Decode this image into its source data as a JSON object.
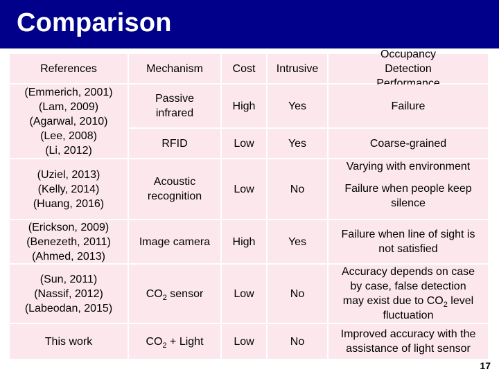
{
  "slide": {
    "title": "Comparison",
    "page_number": "17",
    "header_color": "#00008b",
    "cell_color": "#fce8ec"
  },
  "table": {
    "headers": {
      "references": "References",
      "mechanism": "Mechanism",
      "cost": "Cost",
      "intrusive": "Intrusive",
      "performance": "Occupancy Detection Performance"
    },
    "rows": [
      {
        "references": [
          "(Emmerich, 2001)",
          "(Lam, 2009)",
          "(Agarwal, 2010)",
          "(Lee, 2008)",
          "(Li, 2012)"
        ],
        "mechanism": [
          "Passive",
          "infrared"
        ],
        "cost": "High",
        "intrusive": "Yes",
        "performance": [
          "Failure"
        ]
      },
      {
        "mechanism": [
          "RFID"
        ],
        "cost": "Low",
        "intrusive": "Yes",
        "performance": [
          "Coarse-grained"
        ]
      },
      {
        "references": [
          "(Uziel, 2013)",
          "(Kelly, 2014)",
          "(Huang, 2016)"
        ],
        "mechanism": [
          "Acoustic",
          "recognition"
        ],
        "cost": "Low",
        "intrusive": "No",
        "performance_top": "Varying with environment",
        "performance": [
          "Failure when people keep",
          "silence"
        ]
      },
      {
        "references": [
          "(Erickson, 2009)",
          "(Benezeth, 2011)",
          "(Ahmed, 2013)"
        ],
        "mechanism": [
          "Image camera"
        ],
        "cost": "High",
        "intrusive": "Yes",
        "performance": [
          "Failure when line of sight is",
          "not satisfied"
        ]
      },
      {
        "references": [
          "(Sun, 2011)",
          "(Nassif, 2012)",
          "(Labeodan, 2015)"
        ],
        "mechanism_main": "CO",
        "mechanism_sub": "2",
        "mechanism_rest": " sensor",
        "cost": "Low",
        "intrusive": "No",
        "performance_lines": [
          "Accuracy depends on case",
          "by case, false detection"
        ],
        "performance_co2_pre": "may exist due to CO",
        "performance_co2_sub": "2",
        "performance_co2_post": " level",
        "performance_last": "fluctuation"
      },
      {
        "references": [
          "This work"
        ],
        "mechanism_main": "CO",
        "mechanism_sub": "2",
        "mechanism_rest": " + Light",
        "cost": "Low",
        "intrusive": "No",
        "performance": [
          "Improved accuracy with the",
          "assistance of light sensor"
        ]
      }
    ]
  }
}
